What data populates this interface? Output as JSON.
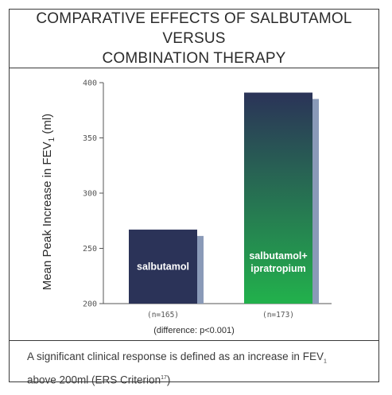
{
  "title_lines": [
    "COMPARATIVE EFFECTS OF SALBUTAMOL VERSUS",
    "COMBINATION THERAPY"
  ],
  "chart_data": {
    "type": "bar",
    "ylabel": "Mean Peak Increase in FEV",
    "ylabel_sub": "1",
    "ylabel_unit": "(ml)",
    "ylim": [
      200,
      400
    ],
    "yticks": [
      200,
      250,
      300,
      350,
      400
    ],
    "grid": false,
    "categories": [
      "salbutamol",
      "salbutamol+ ipratropium"
    ],
    "bar_label_lines": [
      [
        "salbutamol"
      ],
      [
        "salbutamol+",
        "ipratropium"
      ]
    ],
    "values": [
      267,
      391
    ],
    "n_labels": [
      "(n=165)",
      "(n=173)"
    ],
    "annotation": "(difference: p<0.001)",
    "colors": {
      "bar_dark": "#2b3358",
      "bar_green_bottom": "#22b14c",
      "bar_green_top": "#2b3358",
      "shadow": "#8a9ab8"
    }
  },
  "footer": {
    "line1_text": "A significant clinical response is defined as an increase in FEV",
    "line1_sub": "1",
    "line2_text": "above 200ml (ERS Criterion",
    "line2_sup": "17",
    "line2_end": ")"
  }
}
